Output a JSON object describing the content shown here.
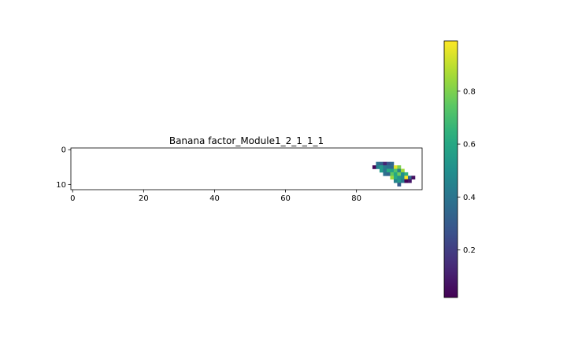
{
  "chart_data": {
    "type": "heatmap",
    "title": "Banana factor_Module1_2_1_1_1",
    "xlabel": "",
    "ylabel": "",
    "colormap": "viridis",
    "x_ticks": [
      0,
      20,
      40,
      60,
      80
    ],
    "y_ticks": [
      0,
      10
    ],
    "xlim": [
      -0.5,
      98.5
    ],
    "ylim": [
      11.5,
      -0.5
    ],
    "colorbar": {
      "range": [
        0.02,
        0.99
      ],
      "ticks": [
        0.2,
        0.4,
        0.6,
        0.8
      ],
      "tick_labels": [
        "0.2",
        "0.4",
        "0.6",
        "0.8"
      ]
    },
    "grid": false,
    "cells": [
      [
        4,
        86,
        0.38
      ],
      [
        4,
        87,
        0.32
      ],
      [
        4,
        88,
        0.12
      ],
      [
        4,
        89,
        0.28
      ],
      [
        4,
        90,
        0.35
      ],
      [
        5,
        85,
        0.03
      ],
      [
        5,
        86,
        0.45
      ],
      [
        5,
        87,
        0.55
      ],
      [
        5,
        88,
        0.42
      ],
      [
        5,
        89,
        0.38
      ],
      [
        5,
        90,
        0.36
      ],
      [
        5,
        91,
        0.95
      ],
      [
        5,
        92,
        0.8
      ],
      [
        6,
        87,
        0.55
      ],
      [
        6,
        88,
        0.4
      ],
      [
        6,
        89,
        0.62
      ],
      [
        6,
        90,
        0.58
      ],
      [
        6,
        91,
        0.72
      ],
      [
        6,
        92,
        0.45
      ],
      [
        6,
        93,
        0.85
      ],
      [
        7,
        88,
        0.38
      ],
      [
        7,
        89,
        0.33
      ],
      [
        7,
        90,
        0.75
      ],
      [
        7,
        91,
        0.6
      ],
      [
        7,
        92,
        0.78
      ],
      [
        7,
        93,
        0.5
      ],
      [
        7,
        94,
        0.65
      ],
      [
        8,
        90,
        0.85
      ],
      [
        8,
        91,
        0.62
      ],
      [
        8,
        92,
        0.52
      ],
      [
        8,
        93,
        0.48
      ],
      [
        8,
        94,
        0.99
      ],
      [
        8,
        95,
        0.35
      ],
      [
        8,
        96,
        0.06
      ],
      [
        9,
        91,
        0.45
      ],
      [
        9,
        92,
        0.55
      ],
      [
        9,
        93,
        0.42
      ],
      [
        9,
        94,
        0.03
      ],
      [
        9,
        95,
        0.08
      ],
      [
        10,
        92,
        0.3
      ]
    ]
  }
}
